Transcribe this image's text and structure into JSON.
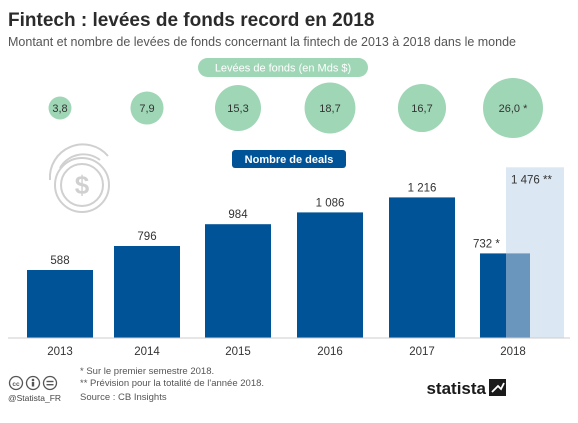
{
  "title": "Fintech : levées de fonds record en 2018",
  "subtitle": "Montant et nombre de levées de fonds concernant la fintech de 2013 à 2018 dans le monde",
  "bubbles_header": "Levées de fonds (en Mds $)",
  "bars_header": "Nombre de deals",
  "colors": {
    "bar": "#005397",
    "bar_projection": "#6a96bd",
    "projection_bg": "#dbe8f3",
    "bubble": "#9fd6b6",
    "pill_green": "#9fd6b6",
    "pill_blue": "#005397"
  },
  "chart_data": {
    "type": "bar",
    "categories": [
      "2013",
      "2014",
      "2015",
      "2016",
      "2017",
      "2018"
    ],
    "bars": {
      "values": [
        588,
        796,
        984,
        1086,
        1216,
        732
      ],
      "labels": [
        "588",
        "796",
        "984",
        "1 086",
        "1 216",
        "732 *"
      ],
      "projection_value": 1476,
      "projection_label": "1 476 **"
    },
    "bubbles": {
      "values": [
        3.8,
        7.9,
        15.3,
        18.7,
        16.7,
        26.0
      ],
      "labels": [
        "3,8",
        "7,9",
        "15,3",
        "18,7",
        "16,7",
        "26,0 *"
      ]
    },
    "ylim": [
      0,
      1600
    ]
  },
  "notes": [
    "*   Sur le premier semestre 2018.",
    "**  Prévision pour la totalité de l'année 2018.",
    "Source : CB Insights"
  ],
  "footer": {
    "handle": "@Statista_FR",
    "brand": "statista"
  }
}
